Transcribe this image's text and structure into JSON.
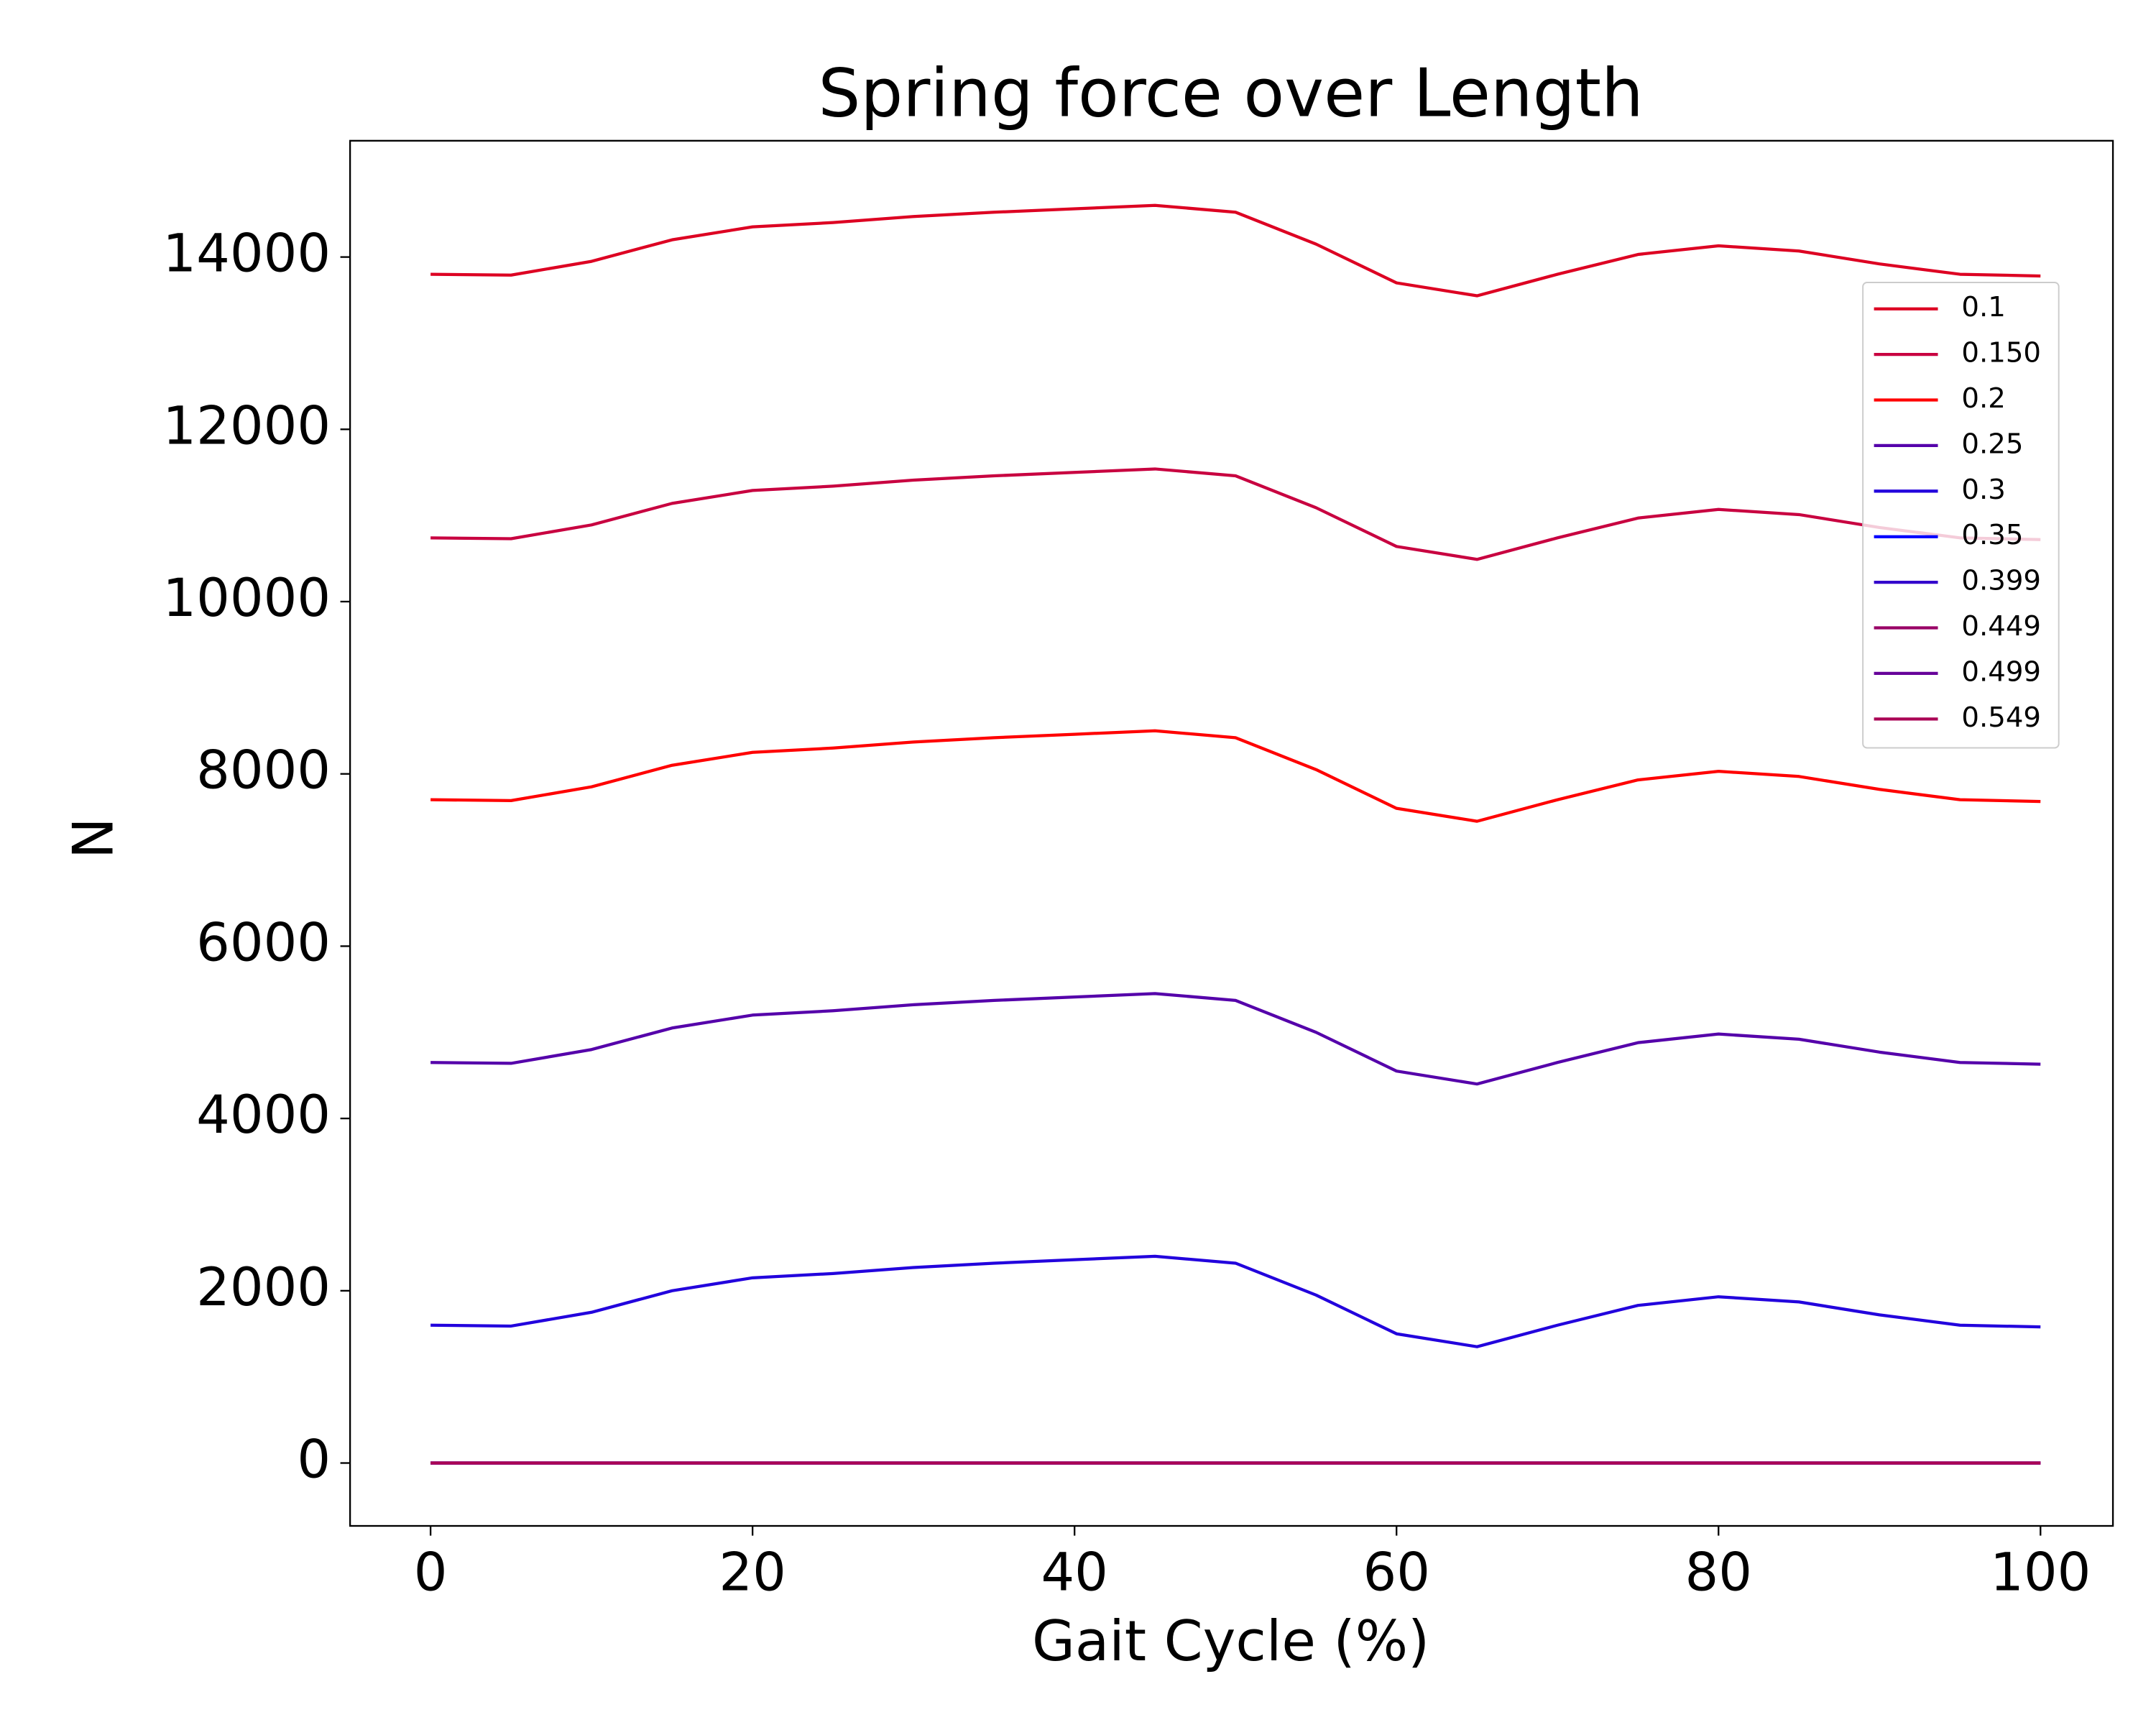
{
  "chart_data": {
    "type": "line",
    "title": "Spring force over Length",
    "x_label": "Gait Cycle (%)",
    "y_label": "N",
    "x": [
      0,
      5,
      10,
      15,
      20,
      25,
      30,
      35,
      40,
      45,
      50,
      55,
      60,
      65,
      70,
      75,
      80,
      85,
      90,
      95,
      100
    ],
    "series": [
      {
        "name": "0.1",
        "color": "#dd0022",
        "values": [
          13800,
          13790,
          13950,
          14200,
          14350,
          14400,
          14470,
          14520,
          14560,
          14600,
          14520,
          14150,
          13700,
          13550,
          13800,
          14030,
          14130,
          14070,
          13920,
          13800,
          13780
        ]
      },
      {
        "name": "0.150",
        "color": "#c80040",
        "values": [
          10740,
          10730,
          10890,
          11140,
          11290,
          11340,
          11410,
          11460,
          11500,
          11540,
          11460,
          11090,
          10640,
          10490,
          10740,
          10970,
          11070,
          11010,
          10860,
          10740,
          10720
        ]
      },
      {
        "name": "0.2",
        "color": "#ff0000",
        "values": [
          7700,
          7690,
          7850,
          8100,
          8250,
          8300,
          8370,
          8420,
          8460,
          8500,
          8420,
          8050,
          7600,
          7450,
          7700,
          7930,
          8030,
          7970,
          7820,
          7700,
          7680
        ]
      },
      {
        "name": "0.25",
        "color": "#5500aa",
        "values": [
          4650,
          4640,
          4800,
          5050,
          5200,
          5250,
          5320,
          5370,
          5410,
          5450,
          5370,
          5000,
          4550,
          4400,
          4650,
          4880,
          4980,
          4920,
          4770,
          4650,
          4630
        ]
      },
      {
        "name": "0.3",
        "color": "#2200dd",
        "values": [
          1600,
          1590,
          1750,
          2000,
          2150,
          2200,
          2270,
          2320,
          2360,
          2400,
          2320,
          1950,
          1500,
          1350,
          1600,
          1830,
          1930,
          1870,
          1720,
          1600,
          1580
        ]
      },
      {
        "name": "0.35",
        "color": "#0000ff",
        "values": [
          0,
          0,
          0,
          0,
          0,
          0,
          0,
          0,
          0,
          0,
          0,
          0,
          0,
          0,
          0,
          0,
          0,
          0,
          0,
          0,
          0
        ]
      },
      {
        "name": "0.399",
        "color": "#3300cc",
        "values": [
          0,
          0,
          0,
          0,
          0,
          0,
          0,
          0,
          0,
          0,
          0,
          0,
          0,
          0,
          0,
          0,
          0,
          0,
          0,
          0,
          0
        ]
      },
      {
        "name": "0.449",
        "color": "#990066",
        "values": [
          0,
          0,
          0,
          0,
          0,
          0,
          0,
          0,
          0,
          0,
          0,
          0,
          0,
          0,
          0,
          0,
          0,
          0,
          0,
          0,
          0
        ]
      },
      {
        "name": "0.499",
        "color": "#660099",
        "values": [
          0,
          0,
          0,
          0,
          0,
          0,
          0,
          0,
          0,
          0,
          0,
          0,
          0,
          0,
          0,
          0,
          0,
          0,
          0,
          0,
          0
        ]
      },
      {
        "name": "0.549",
        "color": "#aa0055",
        "values": [
          0,
          0,
          0,
          0,
          0,
          0,
          0,
          0,
          0,
          0,
          0,
          0,
          0,
          0,
          0,
          0,
          0,
          0,
          0,
          0,
          0
        ]
      }
    ],
    "xlim": [
      -5,
      104.5
    ],
    "xticks": [
      0,
      20,
      40,
      60,
      80,
      100
    ],
    "ylim": [
      -730,
      15350
    ],
    "yticks": [
      0,
      2000,
      4000,
      6000,
      8000,
      10000,
      12000,
      14000
    ],
    "grid": false,
    "legend_position": "upper right"
  }
}
